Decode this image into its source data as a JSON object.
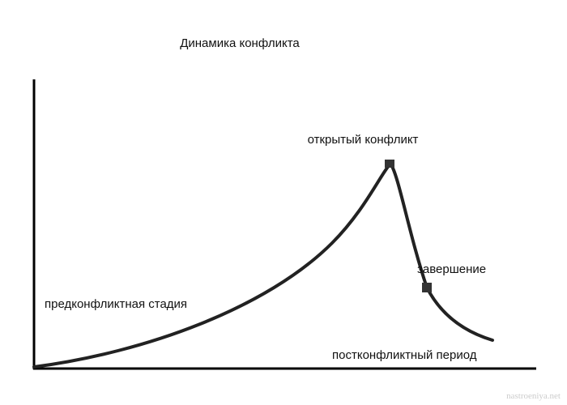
{
  "title": "Динамика конфликта",
  "labels": {
    "peak": "открытый конфликт",
    "ending": "завершение",
    "pre": "предконфликтная стадия",
    "post": "постконфликтный период"
  },
  "watermark": "nastroeniya.net"
}
